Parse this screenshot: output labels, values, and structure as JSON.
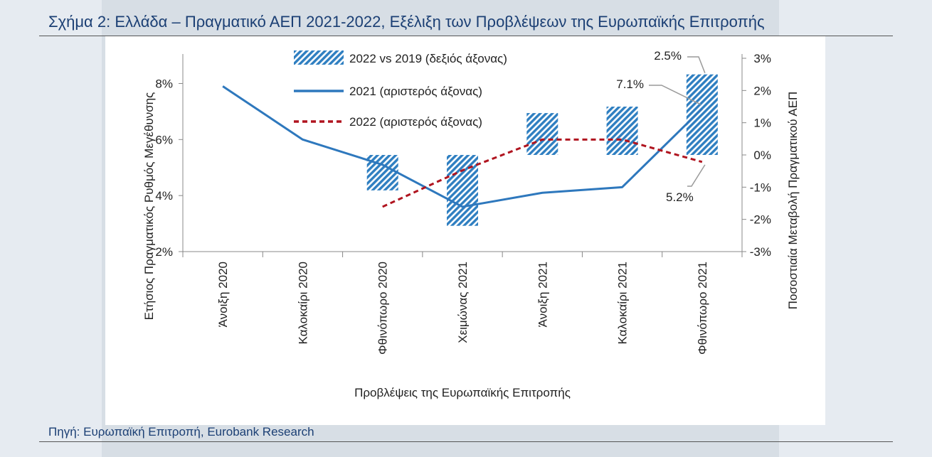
{
  "header": {
    "title": "Σχήμα 2: Ελλάδα – Πραγματικό ΑΕΠ 2021-2022, Εξέλιξη των Προβλέψεων της Ευρωπαϊκής Επιτροπής"
  },
  "footer": {
    "source": "Πηγή: Ευρωπαϊκή Επιτροπή, Eurobank Research"
  },
  "colors": {
    "title_text": "#1b3f74",
    "bar_hatch": "#2f7fc1",
    "line_2021": "#2e78bd",
    "line_2022": "#b0141f",
    "axis": "#888888",
    "label_text": "#222222"
  },
  "chart_data": {
    "type": "line+floating-bar",
    "xlabel": "Προβλέψεις της Ευρωπαϊκής Επιτροπής",
    "ylabel_left": "Ετήσιος Πραγματικός Ρυθμός Μεγέθυνσης",
    "ylabel_right": "Ποσοστιαία Μεταβολή Πραγματικού ΑΕΠ",
    "categories": [
      "Άνοιξη 2020",
      "Καλοκαίρι 2020",
      "Φθινόπωρο 2020",
      "Χειμώνας 2021",
      "Άνοιξη 2021",
      "Καλοκαίρι 2021",
      "Φθινόπωρο 2021"
    ],
    "ylim_left": [
      2,
      8.9
    ],
    "yticks_left": [
      2,
      4,
      6,
      8
    ],
    "ytick_labels_left": [
      "2%",
      "4%",
      "6%",
      "8%"
    ],
    "ylim_right": [
      -3,
      3
    ],
    "yticks_right": [
      -3,
      -2,
      -1,
      0,
      1,
      2,
      3
    ],
    "ytick_labels_right": [
      "-3%",
      "-2%",
      "-1%",
      "0%",
      "1%",
      "2%",
      "3%"
    ],
    "legend": [
      {
        "name": "2022 vs 2019 (δεξιός άξονας)",
        "kind": "hatch"
      },
      {
        "name": "2021 (αριστερός άξονας)",
        "kind": "solid"
      },
      {
        "name": "2022 (αριστερός άξονας)",
        "kind": "dashed"
      }
    ],
    "series": [
      {
        "name": "2021 (αριστερός άξονας)",
        "axis": "left",
        "style": "solid",
        "values": [
          7.9,
          6.0,
          5.1,
          3.6,
          4.1,
          4.3,
          7.1
        ]
      },
      {
        "name": "2022 (αριστερός άξονας)",
        "axis": "left",
        "style": "dashed",
        "values": [
          null,
          null,
          3.6,
          4.9,
          6.0,
          6.0,
          5.2
        ]
      }
    ],
    "bars": {
      "name": "2022 vs 2019 (δεξιός άξονας)",
      "axis": "right",
      "ranges": [
        null,
        null,
        [
          -1.1,
          0.0
        ],
        [
          -2.2,
          0.0
        ],
        [
          0.0,
          1.3
        ],
        [
          0.0,
          1.5
        ],
        [
          0.0,
          2.5
        ]
      ]
    },
    "annotations": [
      {
        "text": "2.5%",
        "category": "Φθινόπωρο 2021",
        "target": "bar",
        "value": 2.5
      },
      {
        "text": "7.1%",
        "category": "Φθινόπωρο 2021",
        "target": "2021",
        "value": 7.1
      },
      {
        "text": "5.2%",
        "category": "Φθινόπωρο 2021",
        "target": "2022",
        "value": 5.2
      }
    ]
  }
}
